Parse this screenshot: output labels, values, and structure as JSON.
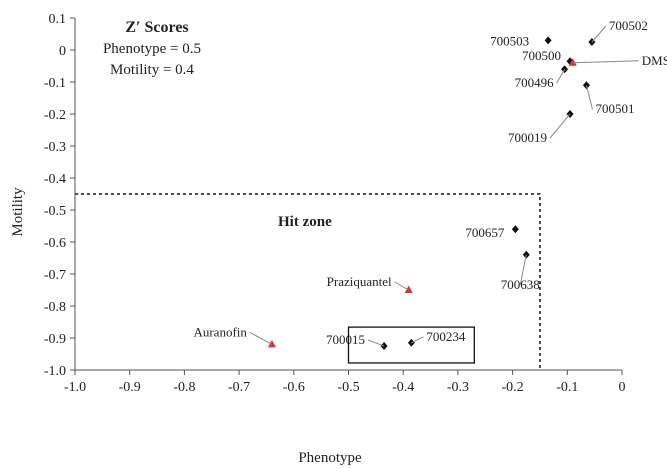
{
  "chart_data": {
    "type": "scatter",
    "xlabel": "Phenotype",
    "ylabel": "Motility",
    "xlim": [
      -1.0,
      0
    ],
    "ylim": [
      -1.0,
      0.1
    ],
    "x_ticks": [
      "-1.0",
      "-0.9",
      "-0.8",
      "-0.7",
      "-0.6",
      "-0.5",
      "-0.4",
      "-0.3",
      "-0.2",
      "-0.1",
      "0"
    ],
    "y_ticks": [
      "0.1",
      "0",
      "-0.1",
      "-0.2",
      "-0.3",
      "-0.4",
      "-0.5",
      "-0.6",
      "-0.7",
      "-0.8",
      "-0.9",
      "-1.0"
    ],
    "grid": false,
    "legend": "none",
    "annotation": {
      "title": "Z′ Scores",
      "lines": [
        "Phenotype = 0.5",
        "Motility = 0.4"
      ]
    },
    "hit_zone": {
      "label": "Hit zone",
      "x_max": -0.15,
      "y_max": -0.45
    },
    "points": [
      {
        "label": "700503",
        "x": -0.135,
        "y": 0.03,
        "marker": "diamond",
        "color": "#111111"
      },
      {
        "label": "700502",
        "x": -0.055,
        "y": 0.025,
        "marker": "diamond",
        "color": "#111111"
      },
      {
        "label": "700500",
        "x": -0.095,
        "y": -0.035,
        "marker": "diamond",
        "color": "#111111"
      },
      {
        "label": "DMSO",
        "x": -0.09,
        "y": -0.04,
        "marker": "triangle",
        "color": "#e03030"
      },
      {
        "label": "700496",
        "x": -0.105,
        "y": -0.06,
        "marker": "diamond",
        "color": "#111111"
      },
      {
        "label": "700501",
        "x": -0.065,
        "y": -0.11,
        "marker": "diamond",
        "color": "#111111"
      },
      {
        "label": "700019",
        "x": -0.095,
        "y": -0.2,
        "marker": "diamond",
        "color": "#111111"
      },
      {
        "label": "700657",
        "x": -0.195,
        "y": -0.56,
        "marker": "diamond",
        "color": "#111111"
      },
      {
        "label": "700638",
        "x": -0.175,
        "y": -0.64,
        "marker": "diamond",
        "color": "#111111"
      },
      {
        "label": "Praziquantel",
        "x": -0.39,
        "y": -0.75,
        "marker": "triangle",
        "color": "#e03030"
      },
      {
        "label": "Auranofin",
        "x": -0.64,
        "y": -0.92,
        "marker": "triangle",
        "color": "#e03030"
      },
      {
        "label": "700015",
        "x": -0.435,
        "y": -0.925,
        "marker": "diamond",
        "color": "#111111"
      },
      {
        "label": "700234",
        "x": -0.385,
        "y": -0.915,
        "marker": "diamond",
        "color": "#111111"
      }
    ]
  }
}
